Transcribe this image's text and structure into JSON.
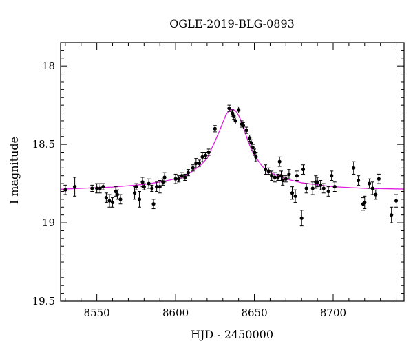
{
  "chart_data": {
    "type": "scatter",
    "title": "OGLE-2019-BLG-0893",
    "xlabel": "HJD - 2450000",
    "ylabel": "I magnitude",
    "xlim": [
      8527,
      8745
    ],
    "ylim": [
      19.5,
      17.85
    ],
    "y_inverted": true,
    "x_ticks": [
      8550,
      8600,
      8650,
      8700
    ],
    "y_ticks": [
      18,
      18.5,
      19,
      19.5
    ],
    "x_tick_labels": [
      "8550",
      "8600",
      "8650",
      "8700"
    ],
    "y_tick_labels": [
      "18",
      "18.5",
      "19",
      "19.5"
    ],
    "grid": false,
    "model_color": "#e020e0",
    "point_color": "#000000",
    "series": [
      {
        "kind": "points",
        "points": [
          [
            8530,
            18.79,
            0.03
          ],
          [
            8536,
            18.77,
            0.06
          ],
          [
            8547,
            18.78,
            0.02
          ],
          [
            8550,
            18.78,
            0.03
          ],
          [
            8552,
            18.78,
            0.03
          ],
          [
            8554,
            18.77,
            0.02
          ],
          [
            8556,
            18.84,
            0.03
          ],
          [
            8558,
            18.86,
            0.04
          ],
          [
            8560,
            18.87,
            0.03
          ],
          [
            8562,
            18.8,
            0.03
          ],
          [
            8563,
            18.82,
            0.03
          ],
          [
            8565,
            18.85,
            0.03
          ],
          [
            8574,
            18.81,
            0.04
          ],
          [
            8575,
            18.77,
            0.02
          ],
          [
            8577,
            18.85,
            0.05
          ],
          [
            8579,
            18.74,
            0.03
          ],
          [
            8580,
            18.77,
            0.02
          ],
          [
            8583,
            18.75,
            0.03
          ],
          [
            8585,
            18.78,
            0.02
          ],
          [
            8586,
            18.88,
            0.03
          ],
          [
            8588,
            18.77,
            0.03
          ],
          [
            8590,
            18.77,
            0.04
          ],
          [
            8592,
            18.74,
            0.02
          ],
          [
            8593,
            18.71,
            0.03
          ],
          [
            8600,
            18.72,
            0.03
          ],
          [
            8602,
            18.72,
            0.02
          ],
          [
            8604,
            18.7,
            0.02
          ],
          [
            8606,
            18.71,
            0.02
          ],
          [
            8608,
            18.68,
            0.02
          ],
          [
            8611,
            18.65,
            0.02
          ],
          [
            8613,
            18.62,
            0.03
          ],
          [
            8615,
            18.62,
            0.02
          ],
          [
            8617,
            18.58,
            0.03
          ],
          [
            8619,
            18.57,
            0.02
          ],
          [
            8621,
            18.55,
            0.02
          ],
          [
            8625,
            18.4,
            0.02
          ],
          [
            8634,
            18.27,
            0.02
          ],
          [
            8636,
            18.3,
            0.02
          ],
          [
            8637,
            18.32,
            0.02
          ],
          [
            8638,
            18.35,
            0.02
          ],
          [
            8640,
            18.28,
            0.02
          ],
          [
            8642,
            18.37,
            0.02
          ],
          [
            8643,
            18.38,
            0.02
          ],
          [
            8645,
            18.41,
            0.02
          ],
          [
            8647,
            18.46,
            0.02
          ],
          [
            8648,
            18.49,
            0.02
          ],
          [
            8649,
            18.52,
            0.02
          ],
          [
            8650,
            18.55,
            0.02
          ],
          [
            8651,
            18.58,
            0.03
          ],
          [
            8657,
            18.66,
            0.03
          ],
          [
            8659,
            18.67,
            0.02
          ],
          [
            8661,
            18.7,
            0.03
          ],
          [
            8663,
            18.71,
            0.03
          ],
          [
            8665,
            18.71,
            0.02
          ],
          [
            8666,
            18.61,
            0.03
          ],
          [
            8667,
            18.7,
            0.03
          ],
          [
            8668,
            18.73,
            0.03
          ],
          [
            8670,
            18.72,
            0.02
          ],
          [
            8672,
            18.69,
            0.03
          ],
          [
            8674,
            18.81,
            0.04
          ],
          [
            8676,
            18.83,
            0.04
          ],
          [
            8677,
            18.7,
            0.03
          ],
          [
            8680,
            18.97,
            0.05
          ],
          [
            8681,
            18.66,
            0.03
          ],
          [
            8683,
            18.78,
            0.03
          ],
          [
            8687,
            18.78,
            0.04
          ],
          [
            8689,
            18.74,
            0.04
          ],
          [
            8690,
            18.74,
            0.03
          ],
          [
            8692,
            18.76,
            0.03
          ],
          [
            8694,
            18.78,
            0.03
          ],
          [
            8697,
            18.8,
            0.03
          ],
          [
            8699,
            18.7,
            0.03
          ],
          [
            8701,
            18.77,
            0.03
          ],
          [
            8713,
            18.65,
            0.04
          ],
          [
            8716,
            18.73,
            0.03
          ],
          [
            8719,
            18.88,
            0.04
          ],
          [
            8720,
            18.87,
            0.04
          ],
          [
            8723,
            18.75,
            0.03
          ],
          [
            8725,
            18.78,
            0.04
          ],
          [
            8727,
            18.82,
            0.03
          ],
          [
            8729,
            18.72,
            0.03
          ],
          [
            8737,
            18.95,
            0.05
          ],
          [
            8740,
            18.86,
            0.04
          ]
        ]
      },
      {
        "kind": "model",
        "points": [
          [
            8527,
            18.786
          ],
          [
            8540,
            18.78
          ],
          [
            8560,
            18.772
          ],
          [
            8580,
            18.755
          ],
          [
            8590,
            18.74
          ],
          [
            8600,
            18.72
          ],
          [
            8605,
            18.71
          ],
          [
            8610,
            18.675
          ],
          [
            8615,
            18.64
          ],
          [
            8620,
            18.59
          ],
          [
            8625,
            18.48
          ],
          [
            8628,
            18.41
          ],
          [
            8630,
            18.36
          ],
          [
            8632,
            18.31
          ],
          [
            8634,
            18.285
          ],
          [
            8636,
            18.275
          ],
          [
            8638,
            18.285
          ],
          [
            8640,
            18.315
          ],
          [
            8642,
            18.36
          ],
          [
            8644,
            18.42
          ],
          [
            8646,
            18.48
          ],
          [
            8648,
            18.53
          ],
          [
            8650,
            18.57
          ],
          [
            8655,
            18.64
          ],
          [
            8660,
            18.68
          ],
          [
            8670,
            18.72
          ],
          [
            8680,
            18.745
          ],
          [
            8700,
            18.77
          ],
          [
            8720,
            18.78
          ],
          [
            8745,
            18.785
          ]
        ]
      }
    ]
  }
}
